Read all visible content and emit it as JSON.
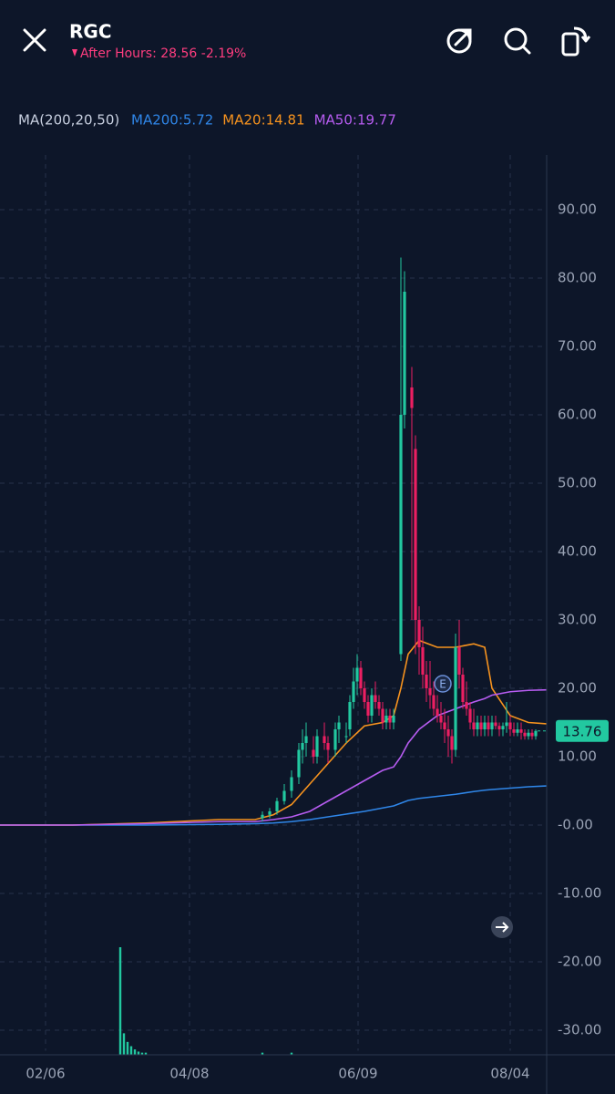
{
  "header": {
    "symbol": "RGC",
    "after_hours": "After Hours: 28.56 -2.19%"
  },
  "chart_data": {
    "type": "candlestick",
    "indicator_label": "MA(200,20,50)",
    "xlim": [
      0,
      150
    ],
    "xticks": [
      {
        "value": 12.5,
        "label": "02/06"
      },
      {
        "value": 52,
        "label": "04/08"
      },
      {
        "value": 98.25,
        "label": "06/09"
      },
      {
        "value": 140,
        "label": "08/04"
      }
    ],
    "ylim": [
      -33,
      98
    ],
    "yticks": [
      {
        "value": 90,
        "label": "90.00"
      },
      {
        "value": 80,
        "label": "80.00"
      },
      {
        "value": 70,
        "label": "70.00"
      },
      {
        "value": 60,
        "label": "60.00"
      },
      {
        "value": 50,
        "label": "50.00"
      },
      {
        "value": 40,
        "label": "40.00"
      },
      {
        "value": 30,
        "label": "30.00"
      },
      {
        "value": 20,
        "label": "20.00"
      },
      {
        "value": 10,
        "label": "10.00"
      },
      {
        "value": 0,
        "label": "-0.00"
      },
      {
        "value": -10,
        "label": "-10.00"
      },
      {
        "value": -20,
        "label": "-20.00"
      },
      {
        "value": -30,
        "label": "-30.00"
      }
    ],
    "grid": true,
    "up_color": "#22c8a0",
    "down_color": "#ec1f62",
    "candles": [
      {
        "x": 72,
        "open": 1,
        "high": 2,
        "low": 0.5,
        "close": 1.5
      },
      {
        "x": 74,
        "open": 1.5,
        "high": 2.5,
        "low": 1,
        "close": 2
      },
      {
        "x": 76,
        "open": 2,
        "high": 4,
        "low": 1.5,
        "close": 3.5
      },
      {
        "x": 78,
        "open": 3.5,
        "high": 6,
        "low": 3,
        "close": 5
      },
      {
        "x": 80,
        "open": 5,
        "high": 8,
        "low": 4,
        "close": 7
      },
      {
        "x": 82,
        "open": 7,
        "high": 12,
        "low": 6,
        "close": 11
      },
      {
        "x": 83,
        "open": 11,
        "high": 14,
        "low": 9,
        "close": 12
      },
      {
        "x": 84,
        "open": 12,
        "high": 15,
        "low": 10,
        "close": 13
      },
      {
        "x": 86,
        "open": 11,
        "high": 13,
        "low": 9,
        "close": 10
      },
      {
        "x": 87,
        "open": 10,
        "high": 14,
        "low": 9,
        "close": 13
      },
      {
        "x": 89,
        "open": 13,
        "high": 15,
        "low": 11,
        "close": 12
      },
      {
        "x": 90,
        "open": 12,
        "high": 13,
        "low": 9,
        "close": 11
      },
      {
        "x": 92,
        "open": 11,
        "high": 15,
        "low": 10,
        "close": 14
      },
      {
        "x": 93,
        "open": 14,
        "high": 16,
        "low": 12,
        "close": 15
      },
      {
        "x": 95,
        "open": 13,
        "high": 15,
        "low": 12,
        "close": 13
      },
      {
        "x": 96,
        "open": 14,
        "high": 19,
        "low": 13,
        "close": 18
      },
      {
        "x": 97,
        "open": 18,
        "high": 23,
        "low": 17,
        "close": 21
      },
      {
        "x": 98,
        "open": 21,
        "high": 25,
        "low": 19,
        "close": 23
      },
      {
        "x": 99,
        "open": 23,
        "high": 24,
        "low": 19,
        "close": 20
      },
      {
        "x": 100,
        "open": 20,
        "high": 21,
        "low": 17,
        "close": 18
      },
      {
        "x": 101,
        "open": 18,
        "high": 19,
        "low": 15,
        "close": 16
      },
      {
        "x": 102,
        "open": 16,
        "high": 20,
        "low": 15,
        "close": 19
      },
      {
        "x": 103,
        "open": 19,
        "high": 21,
        "low": 17,
        "close": 18
      },
      {
        "x": 104,
        "open": 18,
        "high": 19,
        "low": 16,
        "close": 17
      },
      {
        "x": 105,
        "open": 17,
        "high": 18,
        "low": 14,
        "close": 15
      },
      {
        "x": 106,
        "open": 15,
        "high": 17,
        "low": 14,
        "close": 16
      },
      {
        "x": 107,
        "open": 16,
        "high": 17,
        "low": 14,
        "close": 15
      },
      {
        "x": 108,
        "open": 15,
        "high": 17,
        "low": 14,
        "close": 16
      },
      {
        "x": 110,
        "open": 25,
        "high": 83,
        "low": 24,
        "close": 60
      },
      {
        "x": 111,
        "open": 60,
        "high": 81,
        "low": 58,
        "close": 78
      },
      {
        "x": 113,
        "open": 64,
        "high": 67,
        "low": 30,
        "close": 61
      },
      {
        "x": 114,
        "open": 55,
        "high": 57,
        "low": 25,
        "close": 30
      },
      {
        "x": 115,
        "open": 30,
        "high": 32,
        "low": 22,
        "close": 26
      },
      {
        "x": 116,
        "open": 26,
        "high": 29,
        "low": 20,
        "close": 22
      },
      {
        "x": 117,
        "open": 22,
        "high": 24,
        "low": 18,
        "close": 20
      },
      {
        "x": 118,
        "open": 20,
        "high": 24,
        "low": 17,
        "close": 19
      },
      {
        "x": 119,
        "open": 19,
        "high": 21,
        "low": 16,
        "close": 17
      },
      {
        "x": 120,
        "open": 17,
        "high": 19,
        "low": 15,
        "close": 16
      },
      {
        "x": 121,
        "open": 16,
        "high": 18,
        "low": 14,
        "close": 15
      },
      {
        "x": 122,
        "open": 15,
        "high": 17,
        "low": 12,
        "close": 14
      },
      {
        "x": 123,
        "open": 14,
        "high": 16,
        "low": 10,
        "close": 13
      },
      {
        "x": 124,
        "open": 13,
        "high": 14,
        "low": 9,
        "close": 11
      },
      {
        "x": 125,
        "open": 11,
        "high": 28,
        "low": 10,
        "close": 26
      },
      {
        "x": 126,
        "open": 26,
        "high": 30,
        "low": 20,
        "close": 22
      },
      {
        "x": 127,
        "open": 22,
        "high": 23,
        "low": 17,
        "close": 18
      },
      {
        "x": 128,
        "open": 18,
        "high": 21,
        "low": 16,
        "close": 17
      },
      {
        "x": 129,
        "open": 17,
        "high": 18,
        "low": 14,
        "close": 15
      },
      {
        "x": 130,
        "open": 15,
        "high": 17,
        "low": 13,
        "close": 14
      },
      {
        "x": 131,
        "open": 14,
        "high": 16,
        "low": 13,
        "close": 15
      },
      {
        "x": 132,
        "open": 15,
        "high": 16,
        "low": 13,
        "close": 14
      },
      {
        "x": 133,
        "open": 14,
        "high": 16,
        "low": 13,
        "close": 15
      },
      {
        "x": 134,
        "open": 15,
        "high": 16,
        "low": 13,
        "close": 14
      },
      {
        "x": 135,
        "open": 14,
        "high": 16,
        "low": 13,
        "close": 15
      },
      {
        "x": 136,
        "open": 15,
        "high": 16,
        "low": 14,
        "close": 14.5
      },
      {
        "x": 137,
        "open": 14.5,
        "high": 15,
        "low": 13,
        "close": 14
      },
      {
        "x": 138,
        "open": 14,
        "high": 15,
        "low": 13,
        "close": 14.5
      },
      {
        "x": 139,
        "open": 14.5,
        "high": 18,
        "low": 13.5,
        "close": 15
      },
      {
        "x": 140,
        "open": 15,
        "high": 16,
        "low": 13,
        "close": 14
      },
      {
        "x": 141,
        "open": 14,
        "high": 15,
        "low": 13,
        "close": 13.5
      },
      {
        "x": 142,
        "open": 13.5,
        "high": 15,
        "low": 13,
        "close": 14
      },
      {
        "x": 143,
        "open": 14,
        "high": 15,
        "low": 12.5,
        "close": 13.5
      },
      {
        "x": 144,
        "open": 13.5,
        "high": 14,
        "low": 12.5,
        "close": 13
      },
      {
        "x": 145,
        "open": 13,
        "high": 14,
        "low": 12.5,
        "close": 13.5
      },
      {
        "x": 146,
        "open": 13.5,
        "high": 14,
        "low": 12.5,
        "close": 13
      },
      {
        "x": 147,
        "open": 13,
        "high": 14,
        "low": 12.5,
        "close": 13.76
      }
    ],
    "last_price": 13.76,
    "x": [
      0,
      20,
      40,
      60,
      70,
      75,
      80,
      85,
      90,
      95,
      100,
      105,
      108,
      110,
      112,
      115,
      120,
      125,
      130,
      133,
      135,
      140,
      145,
      150
    ],
    "series": [
      {
        "name": "MA200:5.72",
        "color": "#2f86e8",
        "values": [
          0,
          0,
          0,
          0.1,
          0.2,
          0.3,
          0.5,
          0.8,
          1.2,
          1.6,
          2,
          2.5,
          2.8,
          3.2,
          3.6,
          3.9,
          4.2,
          4.5,
          4.9,
          5.1,
          5.2,
          5.4,
          5.6,
          5.72
        ]
      },
      {
        "name": "MA20:14.81",
        "color": "#f7931e",
        "values": [
          0,
          0,
          0.3,
          0.8,
          0.8,
          1.5,
          3,
          6,
          9,
          12,
          14.5,
          15,
          16,
          20,
          25,
          27,
          26,
          26,
          26.5,
          26,
          20,
          16,
          15,
          14.81
        ]
      },
      {
        "name": "MA50:19.77",
        "color": "#b65cf0",
        "values": [
          0,
          0,
          0.2,
          0.5,
          0.5,
          0.8,
          1.2,
          2,
          3.5,
          5,
          6.5,
          8,
          8.5,
          10,
          12,
          14,
          16,
          17,
          18,
          18.5,
          19,
          19.5,
          19.7,
          19.77
        ]
      }
    ],
    "volume": {
      "x": [
        33,
        34,
        35,
        36,
        37,
        38,
        39,
        40,
        72,
        80
      ],
      "values": [
        100,
        20,
        12,
        8,
        5,
        3,
        2,
        2,
        2,
        2
      ],
      "lim": [
        0,
        100
      ]
    },
    "event_label": "E"
  }
}
